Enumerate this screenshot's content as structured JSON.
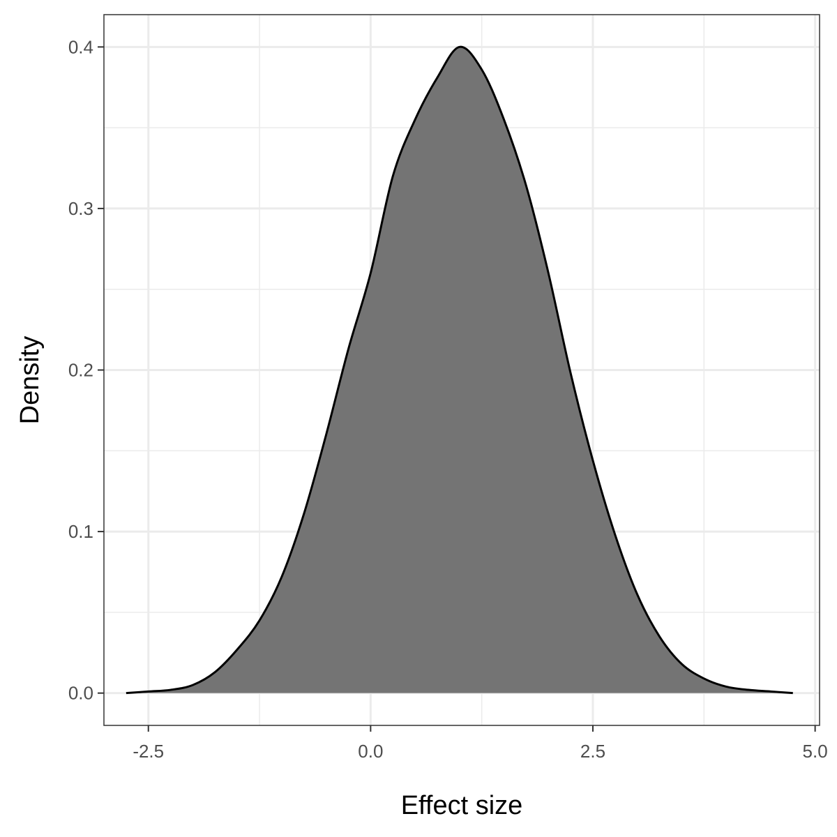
{
  "chart_data": {
    "type": "area",
    "subtype": "density",
    "xlabel": "Effect size",
    "ylabel": "Density",
    "xlim": [
      -3.0,
      5.05
    ],
    "ylim": [
      -0.02,
      0.42
    ],
    "x_ticks": [
      -2.5,
      0.0,
      2.5,
      5.0
    ],
    "x_tick_labels": [
      "-2.5",
      "0.0",
      "2.5",
      "5.0"
    ],
    "y_ticks": [
      0.0,
      0.1,
      0.2,
      0.3,
      0.4
    ],
    "y_tick_labels": [
      "0.0",
      "0.1",
      "0.2",
      "0.3",
      "0.4"
    ],
    "grid": true,
    "fill_color": "#747474",
    "line_color": "#000000",
    "x": [
      -2.75,
      -2.5,
      -2.25,
      -2.0,
      -1.75,
      -1.5,
      -1.25,
      -1.0,
      -0.75,
      -0.5,
      -0.25,
      0.0,
      0.25,
      0.5,
      0.75,
      1.0,
      1.25,
      1.5,
      1.75,
      2.0,
      2.25,
      2.5,
      2.75,
      3.0,
      3.25,
      3.5,
      3.75,
      4.0,
      4.25,
      4.5,
      4.75
    ],
    "y": [
      0.0,
      0.001,
      0.002,
      0.005,
      0.013,
      0.027,
      0.045,
      0.072,
      0.111,
      0.16,
      0.213,
      0.26,
      0.32,
      0.355,
      0.381,
      0.4,
      0.386,
      0.355,
      0.314,
      0.26,
      0.198,
      0.144,
      0.098,
      0.061,
      0.035,
      0.018,
      0.009,
      0.004,
      0.002,
      0.001,
      0.0
    ]
  }
}
